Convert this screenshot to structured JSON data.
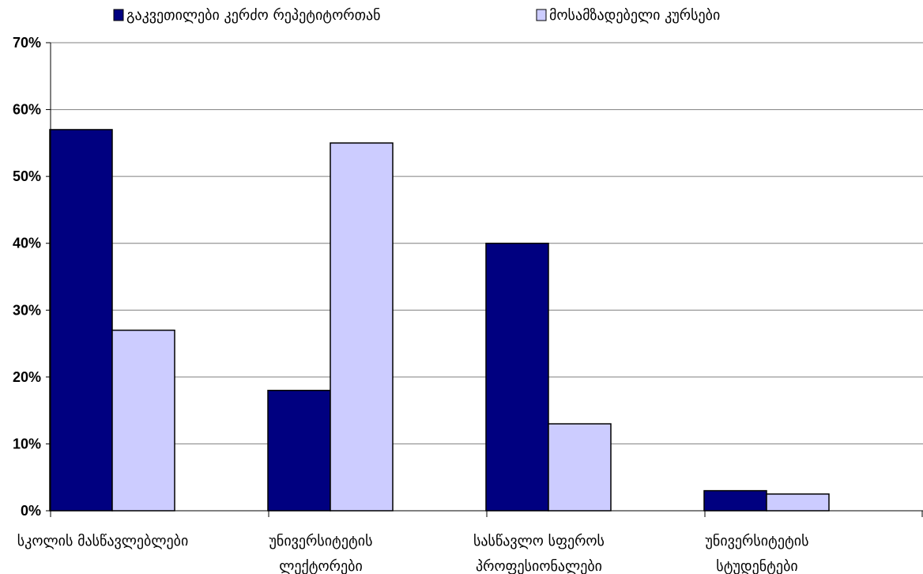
{
  "chart_data": {
    "type": "bar",
    "title": "",
    "xlabel": "",
    "ylabel": "",
    "ylim": [
      0,
      70
    ],
    "y_ticks": [
      0,
      10,
      20,
      30,
      40,
      50,
      60,
      70
    ],
    "y_tick_format": "percent",
    "grid": "horizontal",
    "legend_position": "top",
    "categories": [
      [
        "სკოლის მასწავლებლები"
      ],
      [
        "უნივერსიტეტის",
        "ლექტორები"
      ],
      [
        "სასწავლო სფეროს",
        "პროფესიონალები"
      ],
      [
        "უნივერსიტეტის",
        "სტუდენტები"
      ]
    ],
    "series": [
      {
        "name": "გაკვეთილები კერძო რეპეტიტორთან",
        "color": "#000080",
        "values": [
          57,
          18,
          40,
          3
        ]
      },
      {
        "name": "მოსამზადებელი კურსები",
        "color": "#ccccff",
        "values": [
          27,
          55,
          13,
          2.5
        ]
      }
    ]
  }
}
